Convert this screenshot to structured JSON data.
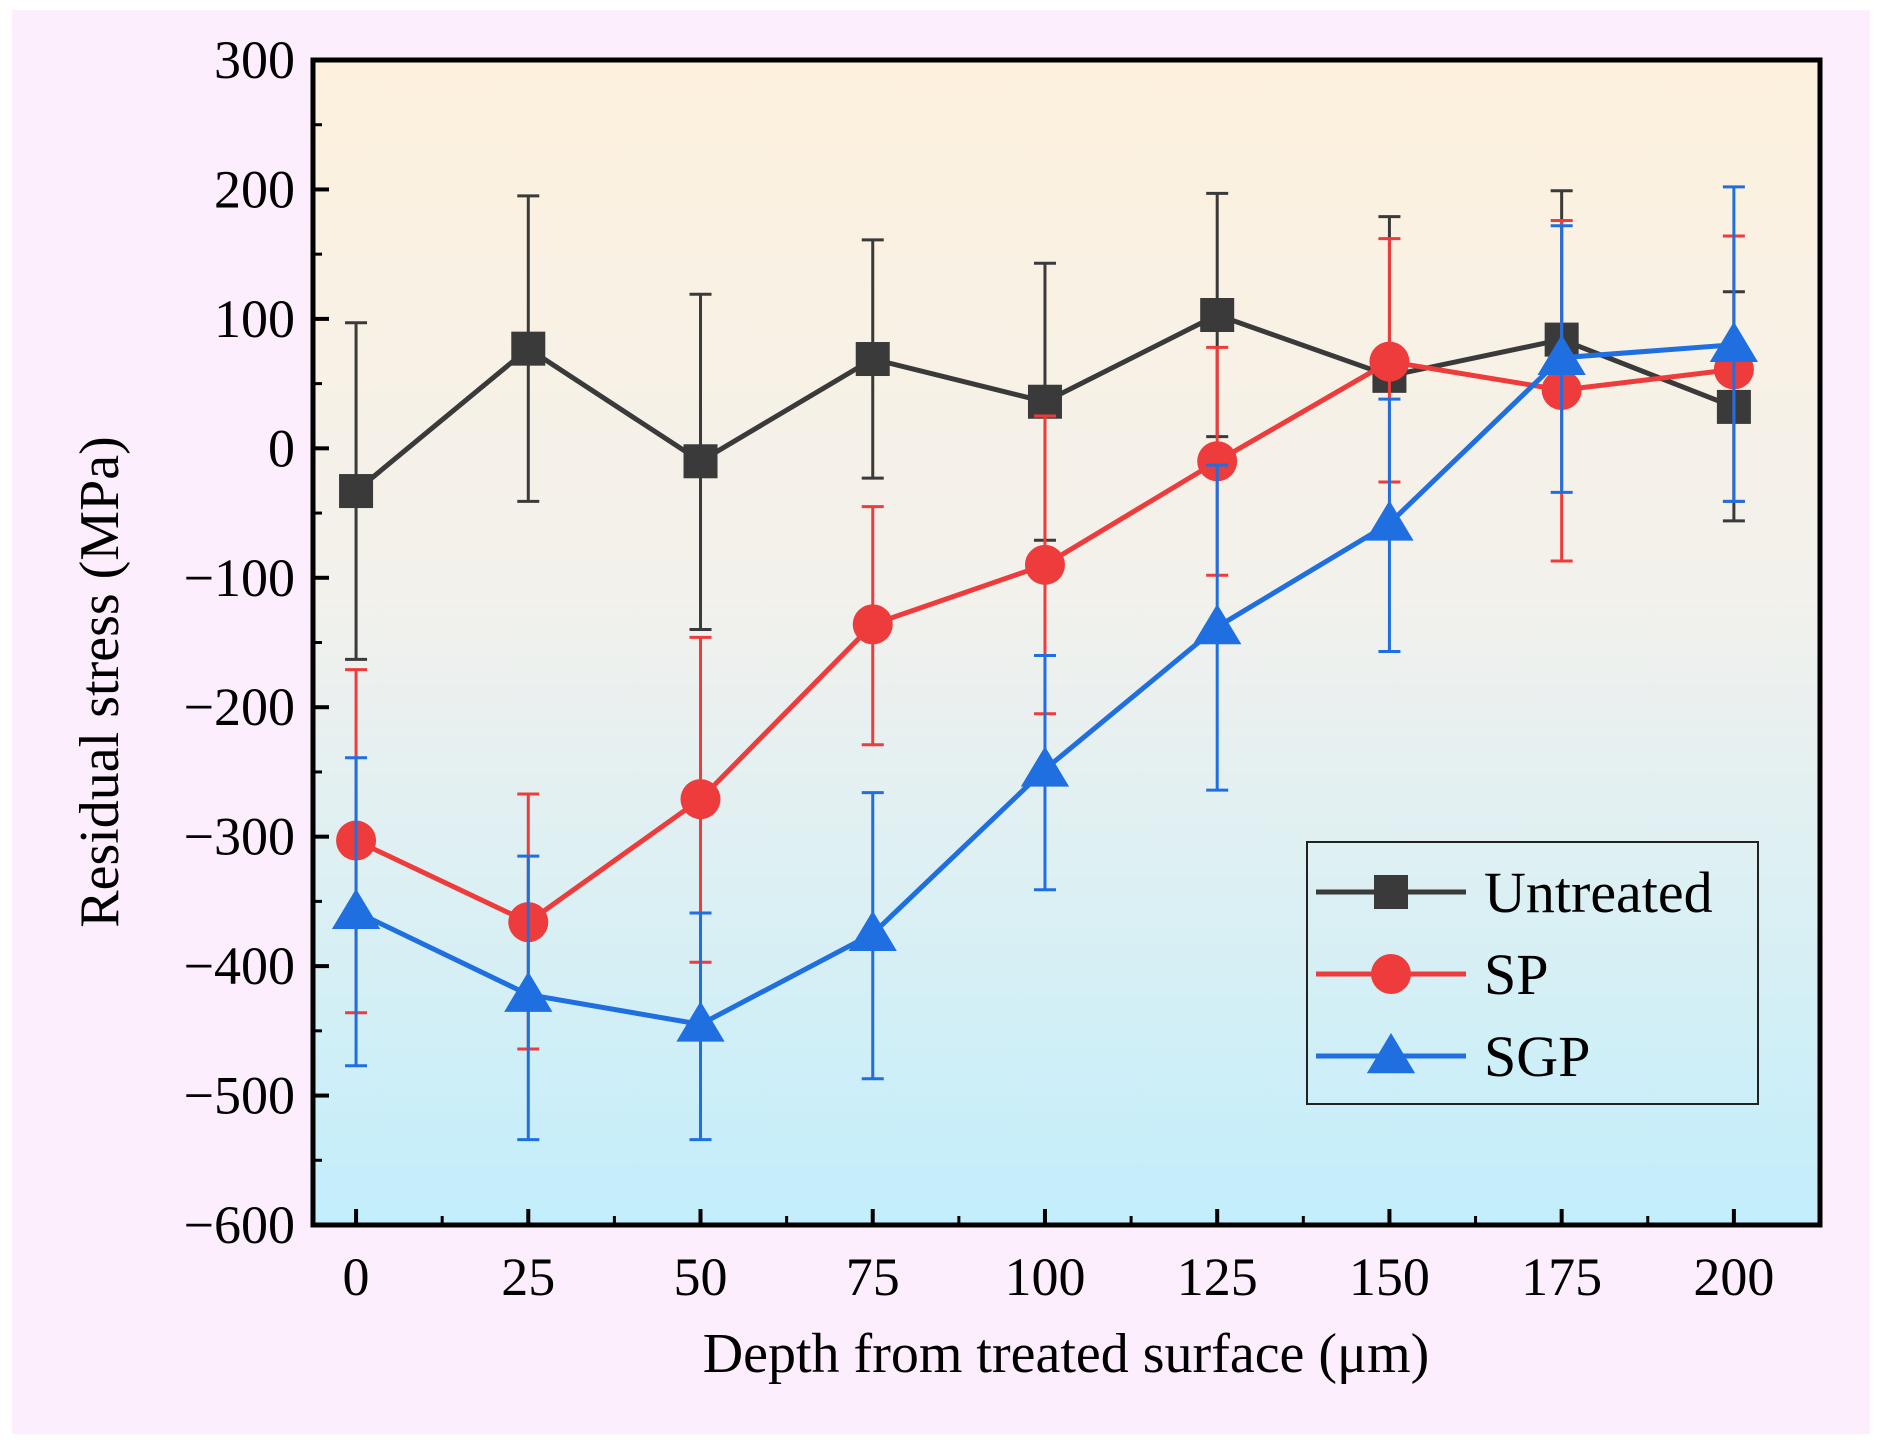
{
  "chart_data": {
    "type": "line",
    "title": "",
    "xlabel": "Depth from treated surface (μm)",
    "ylabel": "Residual stress (MPa)",
    "x": [
      0,
      25,
      50,
      75,
      100,
      125,
      150,
      175,
      200
    ],
    "xlim": [
      -6.25,
      212.5
    ],
    "ylim": [
      -600,
      300
    ],
    "x_ticks": [
      "0",
      "25",
      "50",
      "75",
      "100",
      "125",
      "150",
      "175",
      "200"
    ],
    "y_ticks": [
      "300",
      "200",
      "100",
      "0",
      "−100",
      "−200",
      "−300",
      "−400",
      "−500",
      "−600"
    ],
    "y_tick_values": [
      300,
      200,
      100,
      0,
      -100,
      -200,
      -300,
      -400,
      -500,
      -600
    ],
    "legend_position": "bottom-right",
    "series": [
      {
        "name": "Untreated",
        "color": "#3a3a3a",
        "marker": "square",
        "values": [
          -33,
          77,
          -10,
          69,
          36,
          103,
          56,
          84,
          32
        ],
        "err_upper": [
          97,
          195,
          119,
          161,
          143,
          197,
          179,
          199,
          121
        ],
        "err_lower": [
          -163,
          -41,
          -140,
          -23,
          -71,
          9,
          null,
          null,
          -56
        ]
      },
      {
        "name": "SP",
        "color": "#ee3b3b",
        "marker": "circle",
        "values": [
          -303,
          -366,
          -271,
          -136,
          -90,
          -10,
          67,
          45,
          61
        ],
        "err_upper": [
          -171,
          -267,
          -146,
          -45,
          25,
          78,
          162,
          176,
          164
        ],
        "err_lower": [
          -436,
          -464,
          -397,
          -229,
          -205,
          -98,
          -26,
          -87,
          -41
        ]
      },
      {
        "name": "SGP",
        "color": "#1f6fe0",
        "marker": "triangle",
        "values": [
          -358,
          -422,
          -445,
          -375,
          -248,
          -138,
          -58,
          70,
          80
        ],
        "err_upper": [
          -239,
          -315,
          -359,
          -266,
          -160,
          -13,
          38,
          172,
          202
        ],
        "err_lower": [
          -477,
          -534,
          -534,
          -487,
          -341,
          -264,
          -157,
          -34,
          -41
        ]
      }
    ]
  }
}
